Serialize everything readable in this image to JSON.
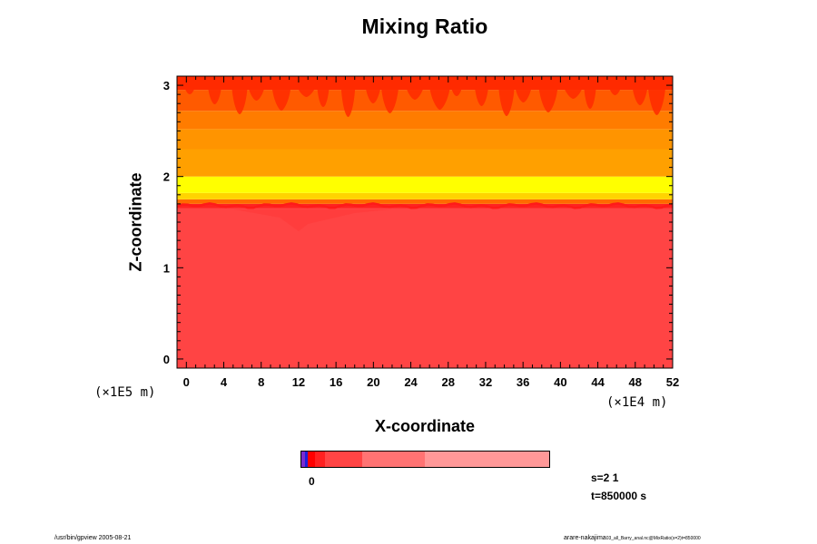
{
  "chart_data": {
    "type": "heatmap",
    "title": "Mixing Ratio",
    "xlabel": "X-coordinate",
    "ylabel": "Z-coordinate",
    "x_unit": "(×1E4 m)",
    "z_unit": "(×1E5 m)",
    "xlim": [
      -1,
      52
    ],
    "ylim": [
      -0.1,
      3.1
    ],
    "x_ticks": [
      "0",
      "4",
      "8",
      "12",
      "16",
      "20",
      "24",
      "28",
      "32",
      "36",
      "40",
      "44",
      "48",
      "52"
    ],
    "y_ticks": [
      "0",
      "1",
      "2",
      "3"
    ],
    "bands": [
      {
        "z0": -0.1,
        "z1": 1.65,
        "color": "#ff4444"
      },
      {
        "z0": 1.65,
        "z1": 1.7,
        "color": "#ff2222"
      },
      {
        "z0": 1.7,
        "z1": 1.75,
        "color": "#ff6a00"
      },
      {
        "z0": 1.75,
        "z1": 1.82,
        "color": "#ffd400"
      },
      {
        "z0": 1.82,
        "z1": 2.0,
        "color": "#ffff00"
      },
      {
        "z0": 2.0,
        "z1": 2.3,
        "color": "#ffa000"
      },
      {
        "z0": 2.3,
        "z1": 2.52,
        "color": "#ff9400"
      },
      {
        "z0": 2.52,
        "z1": 2.72,
        "color": "#ff7c00"
      },
      {
        "z0": 2.72,
        "z1": 2.95,
        "color": "#ff5a00"
      },
      {
        "z0": 2.95,
        "z1": 3.1,
        "color": "#ff2a00"
      }
    ],
    "colorbar": {
      "label": "0",
      "segments": [
        {
          "color": "#7a2ad0",
          "weight": 4
        },
        {
          "color": "#1e1edc",
          "weight": 3
        },
        {
          "color": "#ff0000",
          "weight": 7
        },
        {
          "color": "#ff2020",
          "weight": 11
        },
        {
          "color": "#ff4444",
          "weight": 39
        },
        {
          "color": "#ff7373",
          "weight": 66
        },
        {
          "color": "#ff9898",
          "weight": 131
        }
      ]
    }
  },
  "info": {
    "s": "s=2 1",
    "t": "t=850000 s"
  },
  "footer": {
    "left": "/usr/bin/gpview 2005-08-21",
    "right_main": "arare-nakajima",
    "right_small": "03_all_Barry_anal.nc@MixRatio(s=2)t=850000"
  },
  "colors": {
    "background": "#ffffff",
    "lower_fill": "#ff4444"
  }
}
